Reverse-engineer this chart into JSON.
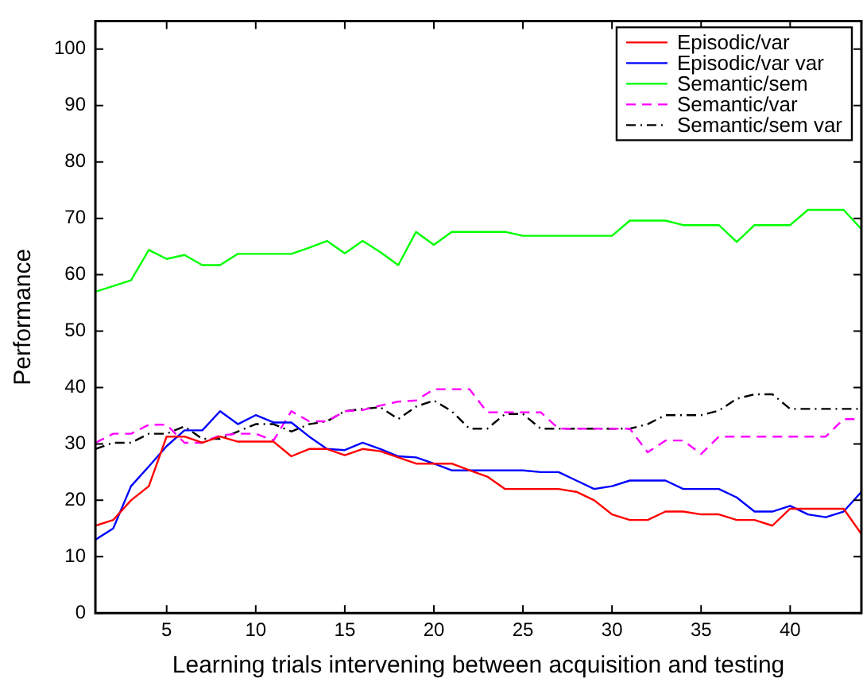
{
  "chart_data": {
    "type": "line",
    "xlabel": "Learning trials intervening between acquisition and testing",
    "ylabel": "Performance",
    "x": [
      1,
      2,
      3,
      4,
      5,
      6,
      7,
      8,
      9,
      10,
      11,
      12,
      13,
      14,
      15,
      16,
      17,
      18,
      19,
      20,
      21,
      22,
      23,
      24,
      25,
      26,
      27,
      28,
      29,
      30,
      31,
      32,
      33,
      34,
      35,
      36,
      37,
      38,
      39,
      40,
      41,
      42,
      43,
      44
    ],
    "xlim": [
      1,
      44
    ],
    "xticks": [
      5,
      10,
      15,
      20,
      25,
      30,
      35,
      40
    ],
    "ylim": [
      0,
      105
    ],
    "yticks": [
      0,
      10,
      20,
      30,
      40,
      50,
      60,
      70,
      80,
      90,
      100
    ],
    "grid": false,
    "legend": "top right",
    "marker": "none",
    "series": [
      {
        "name": "Episodic/var",
        "color": "#ff0000",
        "line_style": "solid",
        "values": [
          15.5,
          16.5,
          20,
          22.5,
          31.3,
          31.3,
          30.2,
          31.3,
          30.4,
          30.4,
          30.4,
          27.8,
          29.1,
          29.1,
          28,
          29.1,
          28.7,
          27.6,
          26.5,
          26.5,
          26.5,
          25.3,
          24.2,
          22,
          22,
          22,
          22,
          21.5,
          20,
          17.5,
          16.5,
          16.5,
          18,
          18,
          17.5,
          17.5,
          16.5,
          16.5,
          15.5,
          18.5,
          18.5,
          18.5,
          18.5,
          14
        ]
      },
      {
        "name": "Episodic/var var",
        "color": "#0000ff",
        "line_style": "solid",
        "values": [
          13,
          15,
          22.5,
          26,
          29.6,
          32.4,
          32.4,
          35.8,
          33.5,
          35.1,
          33.8,
          33.8,
          31.3,
          29.1,
          28.9,
          30.2,
          29.1,
          27.8,
          27.6,
          26.5,
          25.3,
          25.3,
          25.3,
          25.3,
          25.3,
          25,
          25,
          23.5,
          22,
          22.5,
          23.5,
          23.5,
          23.5,
          22,
          22,
          22,
          20.5,
          18,
          18,
          19,
          17.5,
          17,
          18,
          21.5
        ]
      },
      {
        "name": "Semantic/sem",
        "color": "#00ff00",
        "line_style": "solid",
        "values": [
          57,
          58,
          59,
          64.4,
          62.8,
          63.5,
          61.7,
          61.7,
          63.7,
          63.7,
          63.7,
          63.7,
          64.8,
          66,
          63.8,
          66,
          64,
          61.7,
          67.6,
          65.3,
          67.6,
          67.6,
          67.6,
          67.6,
          66.9,
          66.9,
          66.9,
          66.9,
          66.9,
          66.9,
          69.6,
          69.6,
          69.6,
          68.8,
          68.8,
          68.8,
          65.8,
          68.8,
          68.8,
          68.8,
          71.5,
          71.5,
          71.5,
          68.1
        ]
      },
      {
        "name": "Semantic/var",
        "color": "#ff00ff",
        "line_style": "dashed",
        "values": [
          30.2,
          31.8,
          31.8,
          33.4,
          33.4,
          30.2,
          30.2,
          31.5,
          31.8,
          31.8,
          30.6,
          35.8,
          34,
          34,
          35.8,
          36,
          36.8,
          37.5,
          37.7,
          39.7,
          39.7,
          39.7,
          35.6,
          35.6,
          35.6,
          35.6,
          32.7,
          32.7,
          32.7,
          32.7,
          32.7,
          28.5,
          30.6,
          30.6,
          28.2,
          31.3,
          31.3,
          31.3,
          31.3,
          31.3,
          31.3,
          31.3,
          34.4,
          34.4
        ]
      },
      {
        "name": "Semantic/sem var",
        "color": "#000000",
        "line_style": "dashdot",
        "values": [
          29.1,
          30.2,
          30.2,
          31.8,
          31.8,
          33.1,
          30.9,
          30.9,
          32.2,
          33.5,
          33.5,
          32.2,
          33.5,
          34,
          35.8,
          36.2,
          36.5,
          34.4,
          36.6,
          37.7,
          35.8,
          32.7,
          32.7,
          35.3,
          35.3,
          32.7,
          32.7,
          32.7,
          32.7,
          32.7,
          32.7,
          33.5,
          35.1,
          35.1,
          35.1,
          35.9,
          38,
          38.8,
          38.8,
          36.2,
          36.2,
          36.2,
          36.2,
          36.2
        ]
      }
    ]
  }
}
